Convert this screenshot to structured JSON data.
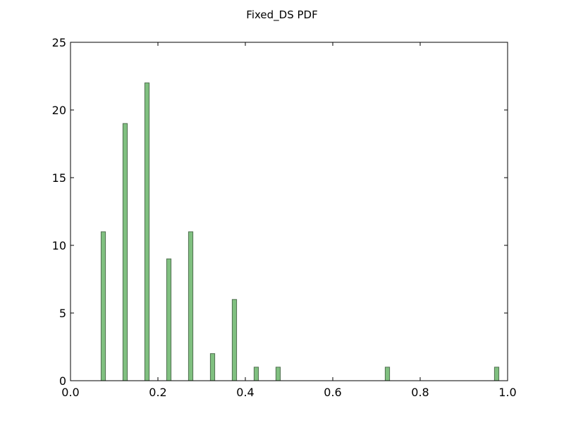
{
  "chart_data": {
    "type": "bar",
    "title": "Fixed_DS PDF",
    "xlabel": "",
    "ylabel": "",
    "xlim": [
      0.0,
      1.0
    ],
    "ylim": [
      0,
      25
    ],
    "xticks": [
      "0.0",
      "0.2",
      "0.4",
      "0.6",
      "0.8",
      "1.0"
    ],
    "yticks": [
      "0",
      "5",
      "10",
      "15",
      "20",
      "25"
    ],
    "grid": false,
    "legend": "none",
    "bar_color": "#80c080",
    "bar_edge_color": "#4f6f4f",
    "bin_width": 0.01,
    "bins": [
      {
        "x": 0.075,
        "count": 11
      },
      {
        "x": 0.125,
        "count": 19
      },
      {
        "x": 0.175,
        "count": 22
      },
      {
        "x": 0.225,
        "count": 9
      },
      {
        "x": 0.275,
        "count": 11
      },
      {
        "x": 0.325,
        "count": 2
      },
      {
        "x": 0.375,
        "count": 6
      },
      {
        "x": 0.425,
        "count": 1
      },
      {
        "x": 0.475,
        "count": 1
      },
      {
        "x": 0.725,
        "count": 1
      },
      {
        "x": 0.975,
        "count": 1
      }
    ]
  }
}
